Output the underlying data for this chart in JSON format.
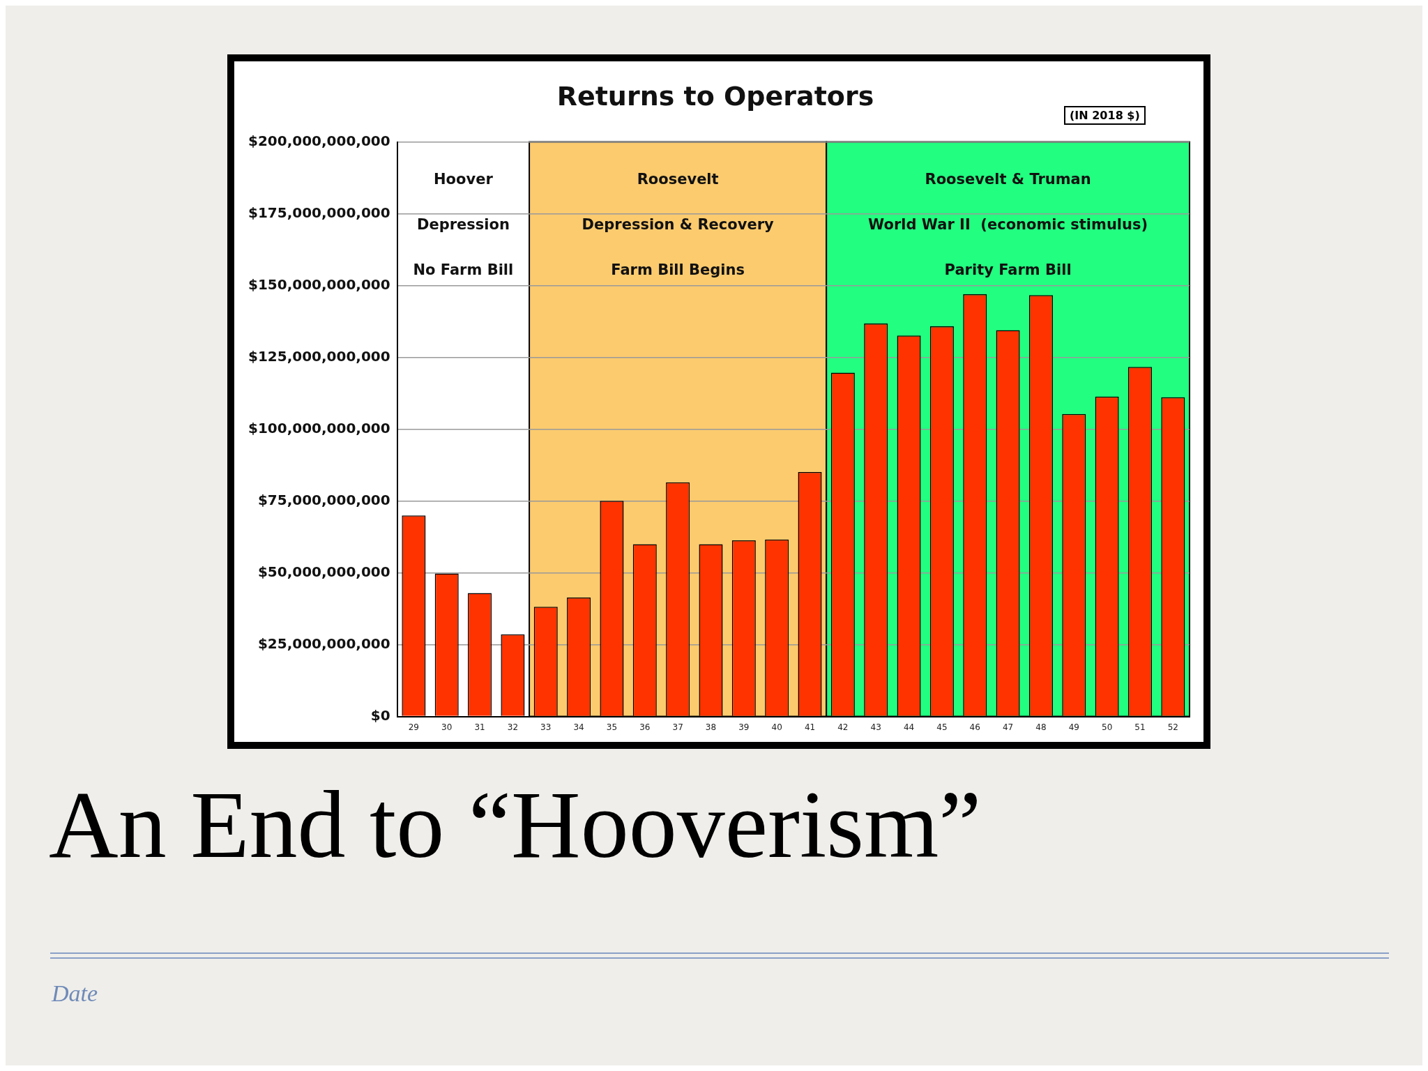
{
  "chart_data": {
    "type": "bar",
    "title": "Returns to Operators",
    "categories": [
      "29",
      "30",
      "31",
      "32",
      "33",
      "34",
      "35",
      "36",
      "37",
      "38",
      "39",
      "40",
      "41",
      "42",
      "43",
      "44",
      "45",
      "46",
      "47",
      "48",
      "49",
      "50",
      "51",
      "52"
    ],
    "values": [
      70000000000,
      49800000000,
      43000000000,
      28600000000,
      38200000000,
      41400000000,
      75100000000,
      60000000000,
      81500000000,
      60000000000,
      61300000000,
      61600000000,
      85100000000,
      119700000000,
      136800000000,
      132600000000,
      135800000000,
      147000000000,
      134500000000,
      146700000000,
      105300000000,
      111400000000,
      121700000000,
      111100000000
    ],
    "color": "#ff3300",
    "ylim": [
      0,
      200000000000
    ],
    "yticks": [
      {
        "value": 0,
        "label": "$0"
      },
      {
        "value": 25000000000,
        "label": "$25,000,000,000"
      },
      {
        "value": 50000000000,
        "label": "$50,000,000,000"
      },
      {
        "value": 75000000000,
        "label": "$75,000,000,000"
      },
      {
        "value": 100000000000,
        "label": "$100,000,000,000"
      },
      {
        "value": 125000000000,
        "label": "$125,000,000,000"
      },
      {
        "value": 150000000000,
        "label": "$150,000,000,000"
      },
      {
        "value": 175000000000,
        "label": "$175,000,000,000"
      },
      {
        "value": 200000000000,
        "label": "$200,000,000,000"
      }
    ],
    "grid": "y",
    "legend": false,
    "bands": [
      {
        "axis": "x",
        "from": "33",
        "to": "41",
        "label": "Roosevelt\nDepression & Recovery\nFarm Bill Begins",
        "color": "#fccb6e"
      },
      {
        "axis": "x",
        "from": "42",
        "to": "52",
        "label": "Roosevelt & Truman\nWorld War II  (economic stimulus)\nParity Farm Bill",
        "color": "#22ff80"
      }
    ],
    "annotations": [
      "(IN 2018 $)",
      "An End to “Hooverism”",
      "Date",
      "Hoover\nDepression\nNo Farm Bill"
    ]
  }
}
